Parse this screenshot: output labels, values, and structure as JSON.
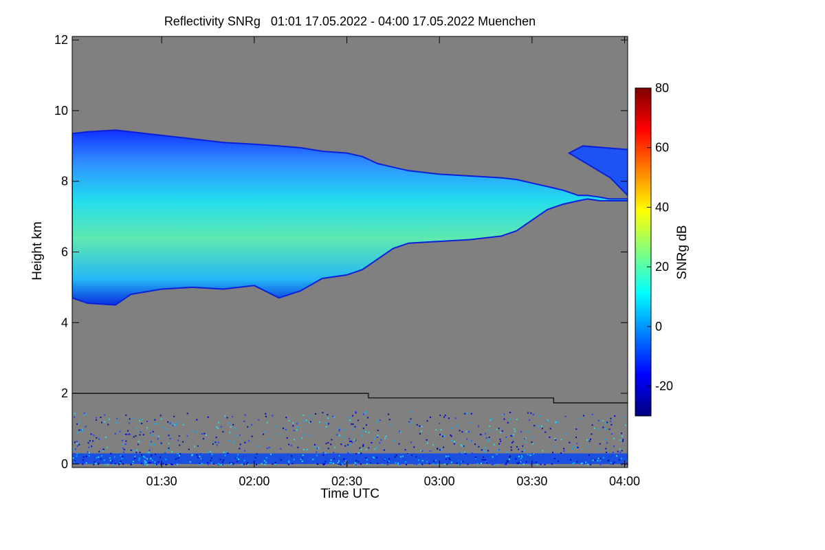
{
  "chart_data": {
    "type": "heatmap",
    "title": "Reflectivity SNRg   01:01 17.05.2022 - 04:00 17.05.2022 Muenchen",
    "xlabel": "Time UTC",
    "ylabel": "Height km",
    "x_ticks": [
      "01:30",
      "02:00",
      "02:30",
      "03:00",
      "03:30",
      "04:00"
    ],
    "x_tick_minutes": [
      90,
      120,
      150,
      180,
      210,
      240
    ],
    "xlim_minutes": [
      61,
      241
    ],
    "y_ticks": [
      0,
      2,
      4,
      6,
      8,
      10,
      12
    ],
    "ylim": [
      -0.1,
      12.1
    ],
    "colorbar": {
      "label": "SNRg dB",
      "ticks": [
        -20,
        0,
        20,
        40,
        60,
        80
      ],
      "range": [
        -30,
        80
      ],
      "colormap": "jet"
    },
    "background_color": "#808080",
    "cloud_layer": {
      "time_minutes": [
        61,
        66,
        75,
        80,
        90,
        100,
        110,
        120,
        128,
        135,
        142,
        150,
        155,
        160,
        165,
        170,
        180,
        190,
        200,
        205,
        210,
        215,
        220,
        225,
        228,
        232,
        235,
        238,
        241
      ],
      "top_km": [
        9.35,
        9.4,
        9.45,
        9.4,
        9.3,
        9.2,
        9.1,
        9.05,
        9.0,
        8.95,
        8.85,
        8.8,
        8.7,
        8.5,
        8.4,
        8.3,
        8.2,
        8.15,
        8.1,
        8.05,
        7.95,
        7.85,
        7.75,
        7.6,
        7.6,
        7.55,
        7.5,
        7.5,
        7.5
      ],
      "base_km": [
        4.7,
        4.55,
        4.5,
        4.8,
        4.95,
        5.0,
        4.95,
        5.05,
        4.7,
        4.9,
        5.25,
        5.35,
        5.5,
        5.8,
        6.1,
        6.25,
        6.3,
        6.35,
        6.45,
        6.6,
        6.9,
        7.2,
        7.35,
        7.45,
        7.5,
        7.45,
        7.45,
        7.45,
        7.45
      ],
      "core_db": 20
    },
    "upper_cloud_segment": {
      "time_minutes": [
        222,
        241
      ],
      "top_km": 9.0,
      "base_km": 7.6
    },
    "boundary_line": {
      "time_minutes": [
        61,
        157,
        157,
        217,
        217,
        241
      ],
      "height_km": [
        2.0,
        2.0,
        1.87,
        1.87,
        1.73,
        1.73
      ]
    },
    "ground_clutter_top_km": 1.5
  }
}
